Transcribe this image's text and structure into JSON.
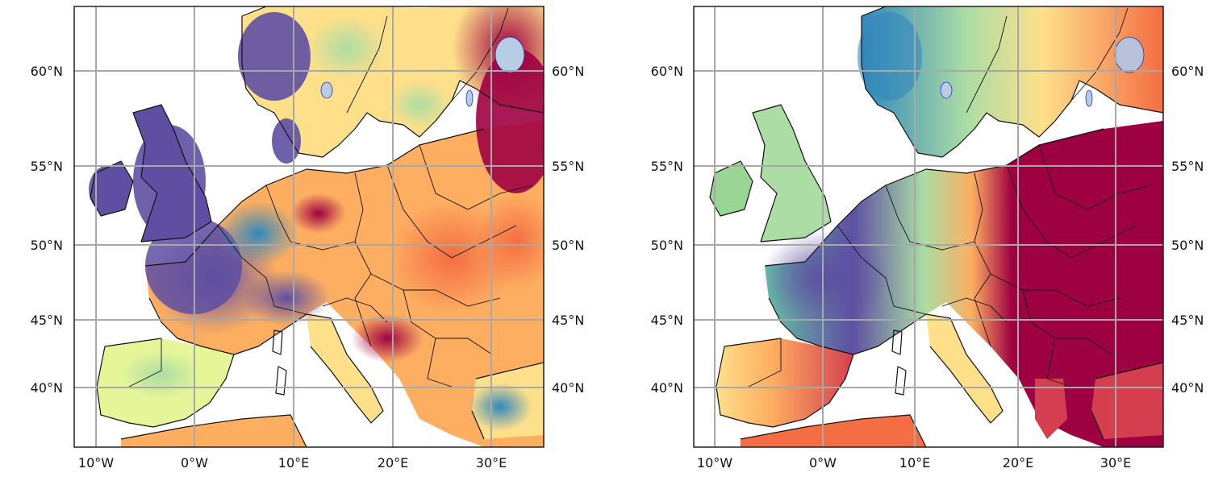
{
  "maps": [
    {
      "id": "left",
      "lat_labels_left": [
        "60°N",
        "55°N",
        "50°N",
        "45°N",
        "40°N"
      ],
      "lat_labels_right": [
        "60°N",
        "55°N",
        "50°N",
        "45°N",
        "40°N"
      ],
      "lon_labels": [
        "10°W",
        "0°W",
        "10°E",
        "20°E",
        "30°E"
      ]
    },
    {
      "id": "right",
      "lat_labels_left": [
        "60°N",
        "55°N",
        "50°N",
        "45°N",
        "40°N"
      ],
      "lat_labels_right": [
        "60°N",
        "55°N",
        "50°N",
        "45°N",
        "40°N"
      ],
      "lon_labels": [
        "10°W",
        "0°W",
        "10°E",
        "20°E",
        "30°E"
      ]
    }
  ],
  "colors": {
    "colormap": "Spectral",
    "low": "#5e4fa2",
    "high": "#9e0142",
    "lakes": "#b7cde3",
    "grid": "#a8a8a8",
    "outline": "#111111"
  },
  "extent": {
    "lon": [
      -12,
      34
    ],
    "lat": [
      36,
      64
    ]
  }
}
